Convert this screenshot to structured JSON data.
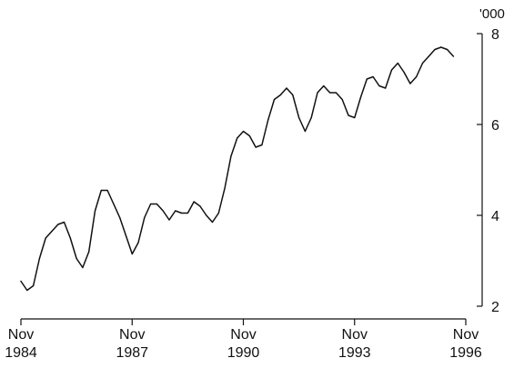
{
  "chart_data": {
    "type": "line",
    "title": "",
    "xlabel": "",
    "ylabel": "",
    "y_unit_label": "'000",
    "ylim": [
      2,
      8
    ],
    "y_ticks": [
      2,
      4,
      6,
      8
    ],
    "y_axis_position": "right",
    "grid": false,
    "x_ticks": [
      {
        "x": 0,
        "month": "Nov",
        "year": "1984"
      },
      {
        "x": 36,
        "month": "Nov",
        "year": "1987"
      },
      {
        "x": 72,
        "month": "Nov",
        "year": "1990"
      },
      {
        "x": 108,
        "month": "Nov",
        "year": "1993"
      },
      {
        "x": 144,
        "month": "Nov",
        "year": "1996"
      }
    ],
    "x_unit": "months (Nov 1984 to Nov 1996)",
    "series": [
      {
        "color": "#111111",
        "points": [
          [
            0,
            2.55
          ],
          [
            2,
            2.35
          ],
          [
            4,
            2.45
          ],
          [
            6,
            3.05
          ],
          [
            8,
            3.5
          ],
          [
            10,
            3.65
          ],
          [
            12,
            3.8
          ],
          [
            14,
            3.85
          ],
          [
            16,
            3.5
          ],
          [
            18,
            3.05
          ],
          [
            20,
            2.85
          ],
          [
            22,
            3.2
          ],
          [
            24,
            4.1
          ],
          [
            26,
            4.55
          ],
          [
            28,
            4.55
          ],
          [
            30,
            4.25
          ],
          [
            32,
            3.95
          ],
          [
            34,
            3.55
          ],
          [
            36,
            3.15
          ],
          [
            38,
            3.4
          ],
          [
            40,
            3.95
          ],
          [
            42,
            4.25
          ],
          [
            44,
            4.25
          ],
          [
            46,
            4.1
          ],
          [
            48,
            3.9
          ],
          [
            50,
            4.1
          ],
          [
            52,
            4.05
          ],
          [
            54,
            4.05
          ],
          [
            56,
            4.3
          ],
          [
            58,
            4.2
          ],
          [
            60,
            4.0
          ],
          [
            62,
            3.85
          ],
          [
            64,
            4.05
          ],
          [
            66,
            4.6
          ],
          [
            68,
            5.3
          ],
          [
            70,
            5.7
          ],
          [
            72,
            5.85
          ],
          [
            74,
            5.75
          ],
          [
            76,
            5.5
          ],
          [
            78,
            5.55
          ],
          [
            80,
            6.1
          ],
          [
            82,
            6.55
          ],
          [
            84,
            6.65
          ],
          [
            86,
            6.8
          ],
          [
            88,
            6.65
          ],
          [
            90,
            6.15
          ],
          [
            92,
            5.85
          ],
          [
            94,
            6.15
          ],
          [
            96,
            6.7
          ],
          [
            98,
            6.85
          ],
          [
            100,
            6.7
          ],
          [
            102,
            6.7
          ],
          [
            104,
            6.55
          ],
          [
            106,
            6.2
          ],
          [
            108,
            6.15
          ],
          [
            110,
            6.6
          ],
          [
            112,
            7.0
          ],
          [
            114,
            7.05
          ],
          [
            116,
            6.85
          ],
          [
            118,
            6.8
          ],
          [
            120,
            7.2
          ],
          [
            122,
            7.35
          ],
          [
            124,
            7.15
          ],
          [
            126,
            6.9
          ],
          [
            128,
            7.05
          ],
          [
            130,
            7.35
          ],
          [
            132,
            7.5
          ],
          [
            134,
            7.65
          ],
          [
            136,
            7.7
          ],
          [
            138,
            7.65
          ],
          [
            140,
            7.5
          ]
        ]
      }
    ]
  }
}
